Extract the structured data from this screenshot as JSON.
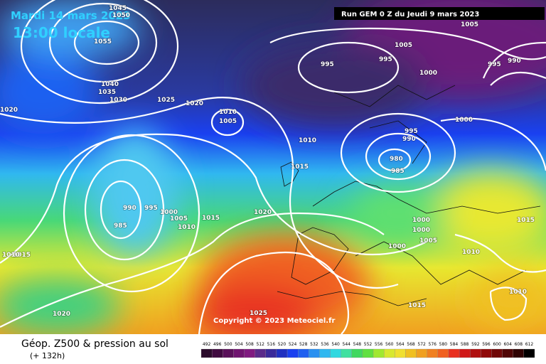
{
  "header": {
    "date": "Mardi 14 mars 2023",
    "time": "13:00 locale",
    "run": "Run GEM 0 Z du Jeudi 9 mars 2023"
  },
  "map": {
    "isobar_labels": [
      "1045",
      "1050",
      "1055",
      "1040",
      "1035",
      "1030",
      "1025",
      "1020",
      "1020",
      "1010",
      "1005",
      "1005",
      "1005",
      "995",
      "995",
      "995",
      "990",
      "1000",
      "1000",
      "995",
      "990",
      "980",
      "985",
      "1010",
      "1015",
      "990",
      "995",
      "1000",
      "1005",
      "1010",
      "1015",
      "1020",
      "985",
      "1000",
      "1000",
      "1000",
      "1005",
      "1010",
      "1015",
      "1010",
      "1015",
      "1020",
      "1025",
      "1015",
      "1010"
    ],
    "copyright": "Copyright © 2023 Meteociel.fr"
  },
  "legend": {
    "title": "Géop. Z500 & pression au sol",
    "lead": "(+ 132h)",
    "scale": [
      492,
      496,
      500,
      504,
      508,
      512,
      516,
      520,
      524,
      528,
      532,
      536,
      540,
      544,
      548,
      552,
      556,
      560,
      564,
      568,
      572,
      576,
      580,
      584,
      588,
      592,
      596,
      600,
      604,
      608,
      612
    ]
  }
}
